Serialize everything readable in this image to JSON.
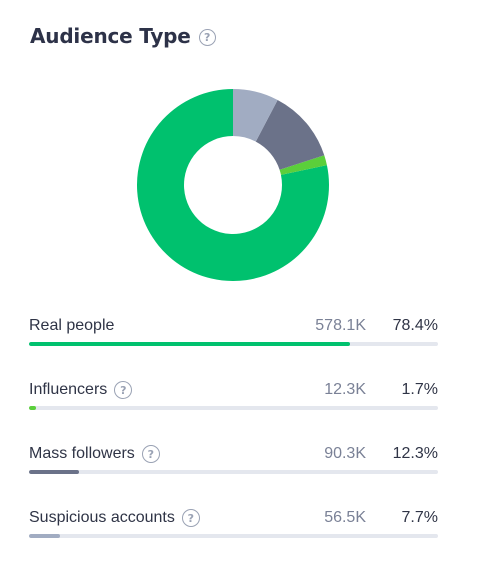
{
  "title": "Audience Type",
  "help_glyph": "?",
  "chart_data": {
    "type": "pie",
    "donut": true,
    "title": "Audience Type",
    "categories": [
      "Real people",
      "Influencers",
      "Mass followers",
      "Suspicious accounts"
    ],
    "values": [
      78.4,
      1.7,
      12.3,
      7.7
    ],
    "counts": [
      "578.1K",
      "12.3K",
      "90.3K",
      "56.5K"
    ],
    "percent_labels": [
      "78.4%",
      "1.7%",
      "12.3%",
      "7.7%"
    ],
    "colors": [
      "#00c16e",
      "#5bcf3b",
      "#6b7289",
      "#a1acc2"
    ]
  },
  "rows": [
    {
      "label": "Real people",
      "count": "578.1K",
      "percent": "78.4%",
      "value": 78.4,
      "color": "#00c16e",
      "has_help": false,
      "help_icon": ""
    },
    {
      "label": "Influencers",
      "count": "12.3K",
      "percent": "1.7%",
      "value": 1.7,
      "color": "#5bcf3b",
      "has_help": true,
      "help_icon": "question-circle-icon"
    },
    {
      "label": "Mass followers",
      "count": "90.3K",
      "percent": "12.3%",
      "value": 12.3,
      "color": "#6b7289",
      "has_help": true,
      "help_icon": "question-circle-icon"
    },
    {
      "label": "Suspicious accounts",
      "count": "56.5K",
      "percent": "7.7%",
      "value": 7.7,
      "color": "#a1acc2",
      "has_help": true,
      "help_icon": "question-circle-icon"
    }
  ],
  "colors": {
    "track": "#e4e7ee",
    "text": "#2f3446",
    "muted": "#7a8196"
  }
}
